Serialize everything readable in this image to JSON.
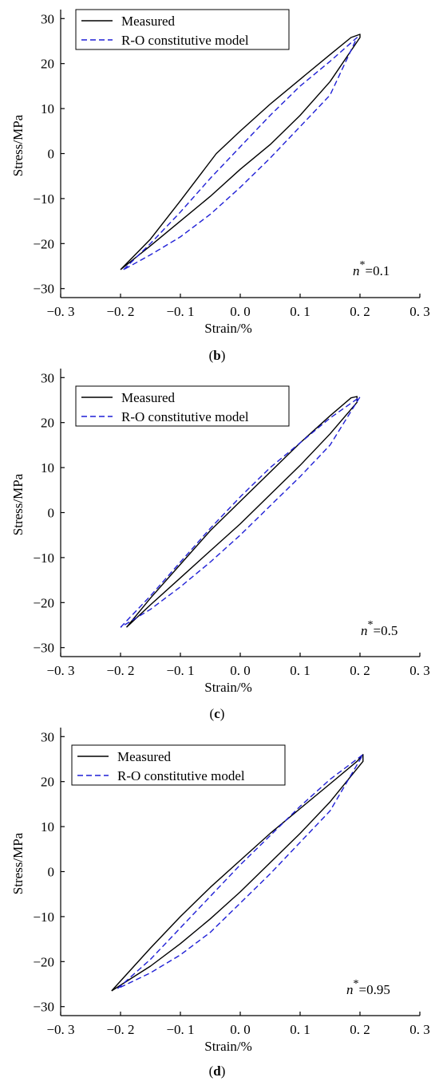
{
  "figure": {
    "panels": [
      {
        "caption_letter": "b",
        "annotation_prefix": "n",
        "annotation_superscript": "*",
        "annotation_value": "=0.1"
      },
      {
        "caption_letter": "c",
        "annotation_prefix": "n",
        "annotation_superscript": "*",
        "annotation_value": "=0.5"
      },
      {
        "caption_letter": "d",
        "annotation_prefix": "n",
        "annotation_superscript": "*",
        "annotation_value": "=0.95"
      }
    ]
  },
  "colors": {
    "measured": "#000000",
    "model": "#1f1fd6"
  },
  "chart_data": [
    {
      "type": "line",
      "title": "",
      "xlabel": "Strain/%",
      "ylabel": "Stress/MPa",
      "xlim": [
        -0.3,
        0.3
      ],
      "ylim": [
        -32,
        32
      ],
      "xticks": [
        -0.3,
        -0.2,
        -0.1,
        0.0,
        0.1,
        0.2,
        0.3
      ],
      "xtick_labels": [
        "−0. 3",
        "−0. 2",
        "−0. 1",
        "0. 0",
        "0. 1",
        "0. 2",
        "0. 3"
      ],
      "yticks": [
        30,
        20,
        10,
        0,
        -10,
        -20,
        -30
      ],
      "ytick_labels": [
        "30",
        "20",
        "10",
        "0",
        "−10",
        "−20",
        "−30"
      ],
      "legend_position": "top-left",
      "annotation": "n*=0.1",
      "series": [
        {
          "name": "Measured",
          "style": "solid",
          "x": [
            -0.2,
            -0.15,
            -0.1,
            -0.04,
            0.0,
            0.05,
            0.1,
            0.15,
            0.185,
            0.2,
            0.2,
            0.15,
            0.1,
            0.05,
            0.0,
            -0.05,
            -0.1,
            -0.15,
            -0.2
          ],
          "y": [
            -25.8,
            -19.0,
            -10.5,
            0.0,
            5.0,
            11.0,
            16.5,
            22.0,
            25.8,
            26.5,
            25.8,
            16.0,
            8.5,
            2.0,
            -3.5,
            -9.5,
            -15.0,
            -20.5,
            -25.8
          ]
        },
        {
          "name": "R-O constitutive model",
          "style": "dashed",
          "x": [
            -0.195,
            -0.15,
            -0.1,
            -0.05,
            0.0,
            0.05,
            0.1,
            0.15,
            0.195,
            0.15,
            0.1,
            0.05,
            0.0,
            -0.05,
            -0.1,
            -0.15,
            -0.195
          ],
          "y": [
            -25.8,
            -20.0,
            -13.0,
            -5.5,
            1.5,
            8.5,
            15.0,
            20.5,
            25.8,
            13.0,
            6.0,
            -1.0,
            -7.5,
            -13.5,
            -18.5,
            -22.5,
            -25.8
          ]
        }
      ]
    },
    {
      "type": "line",
      "title": "",
      "xlabel": "Strain/%",
      "ylabel": "Stress/MPa",
      "xlim": [
        -0.3,
        0.3
      ],
      "ylim": [
        -32,
        32
      ],
      "xticks": [
        -0.3,
        -0.2,
        -0.1,
        0.0,
        0.1,
        0.2,
        0.3
      ],
      "xtick_labels": [
        "−0. 3",
        "−0. 2",
        "−0. 1",
        "0. 0",
        "0. 1",
        "0. 2",
        "0. 3"
      ],
      "yticks": [
        30,
        20,
        10,
        0,
        -10,
        -20,
        -30
      ],
      "ytick_labels": [
        "30",
        "20",
        "10",
        "0",
        "−10",
        "−20",
        "−30"
      ],
      "legend_position": "top-left",
      "annotation": "n*=0.5",
      "series": [
        {
          "name": "Measured",
          "style": "solid",
          "x": [
            -0.19,
            -0.15,
            -0.1,
            -0.05,
            0.0,
            0.05,
            0.1,
            0.15,
            0.185,
            0.195,
            0.195,
            0.15,
            0.1,
            0.05,
            0.0,
            -0.05,
            -0.1,
            -0.15,
            -0.19
          ],
          "y": [
            -25.5,
            -19.0,
            -11.5,
            -4.0,
            2.5,
            9.0,
            15.5,
            21.5,
            25.5,
            25.8,
            24.5,
            17.5,
            10.5,
            4.0,
            -2.5,
            -8.5,
            -14.5,
            -20.5,
            -25.5
          ]
        },
        {
          "name": "R-O constitutive model",
          "style": "dashed",
          "x": [
            -0.2,
            -0.15,
            -0.1,
            -0.05,
            0.0,
            0.05,
            0.1,
            0.15,
            0.2,
            0.15,
            0.1,
            0.05,
            0.0,
            -0.05,
            -0.1,
            -0.15,
            -0.2
          ],
          "y": [
            -25.5,
            -18.5,
            -11.0,
            -3.5,
            3.5,
            10.0,
            15.5,
            21.0,
            25.7,
            15.0,
            8.0,
            1.5,
            -5.0,
            -11.0,
            -16.5,
            -21.5,
            -25.5
          ]
        }
      ]
    },
    {
      "type": "line",
      "title": "",
      "xlabel": "Strain/%",
      "ylabel": "Stress/MPa",
      "xlim": [
        -0.3,
        0.3
      ],
      "ylim": [
        -32,
        32
      ],
      "xticks": [
        -0.3,
        -0.2,
        -0.1,
        0.0,
        0.1,
        0.2,
        0.3
      ],
      "xtick_labels": [
        "−0. 3",
        "−0. 2",
        "−0. 1",
        "0. 0",
        "0. 1",
        "0. 2",
        "0. 3"
      ],
      "yticks": [
        30,
        20,
        10,
        0,
        -10,
        -20,
        -30
      ],
      "ytick_labels": [
        "30",
        "20",
        "10",
        "0",
        "−10",
        "−20",
        "−30"
      ],
      "legend_position": "top-left",
      "annotation": "n*=0.95",
      "series": [
        {
          "name": "Measured",
          "style": "solid",
          "x": [
            -0.215,
            -0.15,
            -0.1,
            -0.05,
            0.0,
            0.05,
            0.1,
            0.15,
            0.195,
            0.205,
            0.205,
            0.15,
            0.1,
            0.05,
            0.0,
            -0.05,
            -0.1,
            -0.15,
            -0.215
          ],
          "y": [
            -26.5,
            -17.0,
            -10.0,
            -3.5,
            2.5,
            8.5,
            14.0,
            19.5,
            24.5,
            26.0,
            24.5,
            15.5,
            8.5,
            2.0,
            -4.5,
            -10.5,
            -16.0,
            -21.0,
            -26.5
          ]
        },
        {
          "name": "R-O constitutive model",
          "style": "dashed",
          "x": [
            -0.205,
            -0.15,
            -0.1,
            -0.05,
            0.0,
            0.05,
            0.1,
            0.15,
            0.205,
            0.15,
            0.1,
            0.05,
            0.0,
            -0.05,
            -0.1,
            -0.15,
            -0.205
          ],
          "y": [
            -26.0,
            -19.5,
            -12.5,
            -5.5,
            1.5,
            8.0,
            14.5,
            20.5,
            26.0,
            13.5,
            6.5,
            -0.5,
            -7.0,
            -13.5,
            -18.5,
            -22.5,
            -26.0
          ]
        }
      ]
    }
  ]
}
